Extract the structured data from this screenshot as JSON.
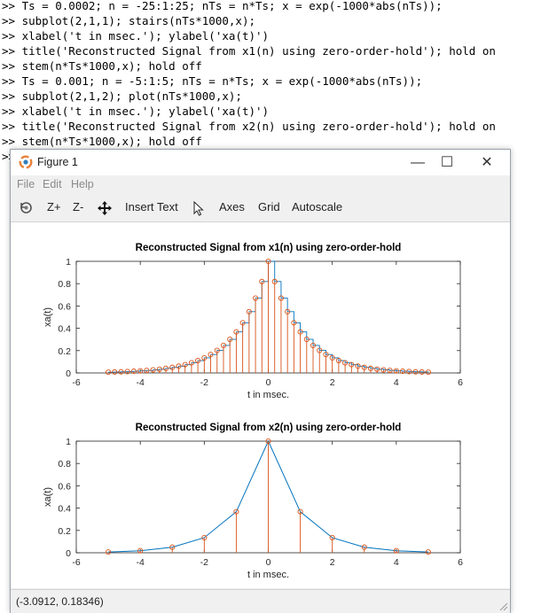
{
  "console": {
    "prompt": ">>",
    "lines": [
      "Ts = 0.0002; n = -25:1:25; nTs = n*Ts; x = exp(-1000*abs(nTs));",
      "subplot(2,1,1); stairs(nTs*1000,x);",
      "xlabel('t in msec.'); ylabel('xa(t)')",
      "title('Reconstructed Signal from x1(n) using zero-order-hold'); hold on",
      "stem(n*Ts*1000,x); hold off",
      "Ts = 0.001; n = -5:1:5; nTs = n*Ts; x = exp(-1000*abs(nTs));",
      "subplot(2,1,2); plot(nTs*1000,x);",
      "xlabel('t in msec.'); ylabel('xa(t)')",
      "title('Reconstructed Signal from x2(n) using zero-order-hold'); hold on",
      "stem(n*Ts*1000,x); hold off"
    ]
  },
  "figure": {
    "title": "Figure 1",
    "window_buttons": {
      "minimize": "—",
      "maximize": "☐",
      "close": "✕"
    },
    "menu": [
      "File",
      "Edit",
      "Help"
    ],
    "toolbar": {
      "zoom_in": "Z+",
      "zoom_out": "Z-",
      "insert_text": "Insert Text",
      "axes": "Axes",
      "grid": "Grid",
      "autoscale": "Autoscale"
    },
    "status": "(-3.0912, 0.18346)"
  },
  "chart_data": [
    {
      "type": "line",
      "title": "Reconstructed Signal from x1(n) using zero-order-hold",
      "xlabel": "t in msec.",
      "ylabel": "xa(t)",
      "xlim": [
        -6,
        6
      ],
      "ylim": [
        0,
        1
      ],
      "xticks": [
        "-6",
        "-4",
        "-2",
        "0",
        "2",
        "4",
        "6"
      ],
      "yticks": [
        "0",
        "0.2",
        "0.4",
        "0.6",
        "0.8",
        "1"
      ],
      "grid": false,
      "series": [
        {
          "style": "stairs",
          "color": "#0072bd",
          "x": [
            -5,
            -4.8,
            -4.6,
            -4.4,
            -4.2,
            -4,
            -3.8,
            -3.6,
            -3.4,
            -3.2,
            -3,
            -2.8,
            -2.6,
            -2.4,
            -2.2,
            -2,
            -1.8,
            -1.6,
            -1.4,
            -1.2,
            -1,
            -0.8,
            -0.6,
            -0.4,
            -0.2,
            0,
            0.2,
            0.4,
            0.6,
            0.8,
            1,
            1.2,
            1.4,
            1.6,
            1.8,
            2,
            2.2,
            2.4,
            2.6,
            2.8,
            3,
            3.2,
            3.4,
            3.6,
            3.8,
            4,
            4.2,
            4.4,
            4.6,
            4.8,
            5
          ],
          "y": [
            0.0067,
            0.0082,
            0.0101,
            0.0123,
            0.015,
            0.0183,
            0.0224,
            0.0273,
            0.0334,
            0.0408,
            0.0498,
            0.0608,
            0.0743,
            0.0907,
            0.1108,
            0.1353,
            0.1653,
            0.2019,
            0.2466,
            0.3012,
            0.3679,
            0.4493,
            0.5488,
            0.6703,
            0.8187,
            1,
            0.8187,
            0.6703,
            0.5488,
            0.4493,
            0.3679,
            0.3012,
            0.2466,
            0.2019,
            0.1653,
            0.1353,
            0.1108,
            0.0907,
            0.0743,
            0.0608,
            0.0498,
            0.0408,
            0.0334,
            0.0273,
            0.0224,
            0.0183,
            0.015,
            0.0123,
            0.0101,
            0.0082,
            0.0067
          ]
        },
        {
          "style": "stem",
          "color": "#d95319",
          "x": [
            -5,
            -4.8,
            -4.6,
            -4.4,
            -4.2,
            -4,
            -3.8,
            -3.6,
            -3.4,
            -3.2,
            -3,
            -2.8,
            -2.6,
            -2.4,
            -2.2,
            -2,
            -1.8,
            -1.6,
            -1.4,
            -1.2,
            -1,
            -0.8,
            -0.6,
            -0.4,
            -0.2,
            0,
            0.2,
            0.4,
            0.6,
            0.8,
            1,
            1.2,
            1.4,
            1.6,
            1.8,
            2,
            2.2,
            2.4,
            2.6,
            2.8,
            3,
            3.2,
            3.4,
            3.6,
            3.8,
            4,
            4.2,
            4.4,
            4.6,
            4.8,
            5
          ],
          "y": [
            0.0067,
            0.0082,
            0.0101,
            0.0123,
            0.015,
            0.0183,
            0.0224,
            0.0273,
            0.0334,
            0.0408,
            0.0498,
            0.0608,
            0.0743,
            0.0907,
            0.1108,
            0.1353,
            0.1653,
            0.2019,
            0.2466,
            0.3012,
            0.3679,
            0.4493,
            0.5488,
            0.6703,
            0.8187,
            1,
            0.8187,
            0.6703,
            0.5488,
            0.4493,
            0.3679,
            0.3012,
            0.2466,
            0.2019,
            0.1653,
            0.1353,
            0.1108,
            0.0907,
            0.0743,
            0.0608,
            0.0498,
            0.0408,
            0.0334,
            0.0273,
            0.0224,
            0.0183,
            0.015,
            0.0123,
            0.0101,
            0.0082,
            0.0067
          ]
        }
      ]
    },
    {
      "type": "line",
      "title": "Reconstructed Signal from x2(n) using zero-order-hold",
      "xlabel": "t in msec.",
      "ylabel": "xa(t)",
      "xlim": [
        -6,
        6
      ],
      "ylim": [
        0,
        1
      ],
      "xticks": [
        "-6",
        "-4",
        "-2",
        "0",
        "2",
        "4",
        "6"
      ],
      "yticks": [
        "0",
        "0.2",
        "0.4",
        "0.6",
        "0.8",
        "1"
      ],
      "grid": false,
      "series": [
        {
          "style": "line",
          "color": "#0072bd",
          "x": [
            -5,
            -4,
            -3,
            -2,
            -1,
            0,
            1,
            2,
            3,
            4,
            5
          ],
          "y": [
            0.0067,
            0.0183,
            0.0498,
            0.1353,
            0.3679,
            1,
            0.3679,
            0.1353,
            0.0498,
            0.0183,
            0.0067
          ]
        },
        {
          "style": "stem",
          "color": "#d95319",
          "x": [
            -5,
            -4,
            -3,
            -2,
            -1,
            0,
            1,
            2,
            3,
            4,
            5
          ],
          "y": [
            0.0067,
            0.0183,
            0.0498,
            0.1353,
            0.3679,
            1,
            0.3679,
            0.1353,
            0.0498,
            0.0183,
            0.0067
          ]
        }
      ]
    }
  ]
}
